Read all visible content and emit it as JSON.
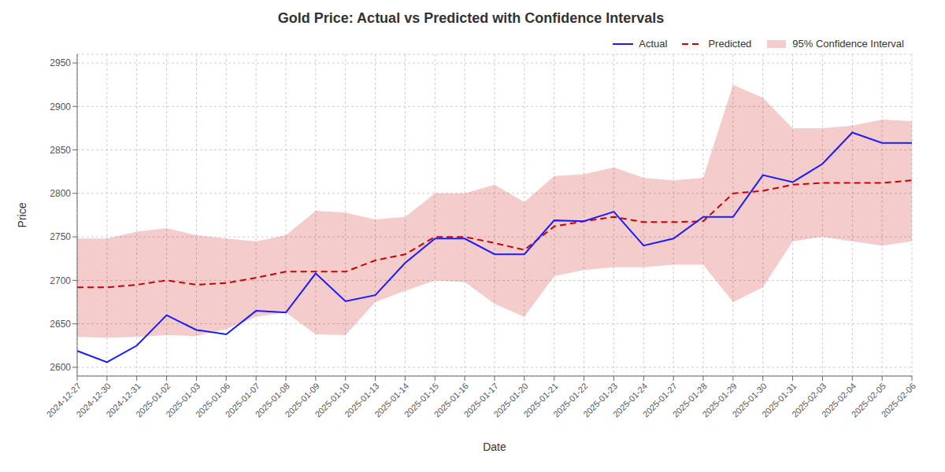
{
  "chart_data": {
    "type": "line",
    "title": "Gold Price: Actual vs Predicted with Confidence Intervals",
    "x_label": "Date",
    "y_label": "Price",
    "categories": [
      "2024-12-27",
      "2024-12-30",
      "2024-12-31",
      "2025-01-02",
      "2025-01-03",
      "2025-01-06",
      "2025-01-07",
      "2025-01-08",
      "2025-01-09",
      "2025-01-10",
      "2025-01-13",
      "2025-01-14",
      "2025-01-15",
      "2025-01-16",
      "2025-01-17",
      "2025-01-20",
      "2025-01-21",
      "2025-01-22",
      "2025-01-23",
      "2025-01-24",
      "2025-01-27",
      "2025-01-28",
      "2025-01-29",
      "2025-01-30",
      "2025-01-31",
      "2025-02-03",
      "2025-02-04",
      "2025-02-05",
      "2025-02-06"
    ],
    "series": [
      {
        "name": "Actual",
        "type": "line",
        "line_style": "solid",
        "color": "#1a1aff",
        "values": [
          2619,
          2606,
          2625,
          2660,
          2643,
          2638,
          2665,
          2663,
          2708,
          2676,
          2683,
          2720,
          2748,
          2748,
          2730,
          2730,
          2769,
          2768,
          2779,
          2740,
          2748,
          2773,
          2773,
          2821,
          2813,
          2834,
          2870,
          2858,
          2858
        ]
      },
      {
        "name": "Predicted",
        "type": "line",
        "line_style": "dashed",
        "color": "#cc0000",
        "values": [
          2692,
          2692,
          2695,
          2700,
          2695,
          2697,
          2703,
          2710,
          2710,
          2710,
          2723,
          2730,
          2750,
          2750,
          2743,
          2735,
          2762,
          2768,
          2773,
          2767,
          2767,
          2768,
          2800,
          2803,
          2810,
          2812,
          2812,
          2812,
          2815
        ]
      },
      {
        "name": "95% Confidence Interval",
        "type": "band",
        "color": "#cc0000",
        "lower": [
          2635,
          2634,
          2635,
          2637,
          2636,
          2644,
          2658,
          2663,
          2638,
          2637,
          2675,
          2688,
          2700,
          2698,
          2673,
          2658,
          2705,
          2712,
          2715,
          2715,
          2718,
          2718,
          2675,
          2692,
          2745,
          2750,
          2745,
          2740,
          2745
        ],
        "upper": [
          2748,
          2748,
          2756,
          2760,
          2752,
          2748,
          2745,
          2752,
          2780,
          2778,
          2770,
          2773,
          2800,
          2800,
          2810,
          2790,
          2820,
          2822,
          2830,
          2818,
          2815,
          2818,
          2925,
          2910,
          2875,
          2875,
          2878,
          2885,
          2883
        ]
      }
    ],
    "ylim": [
      2590,
      2960
    ],
    "yticks": [
      2600,
      2650,
      2700,
      2750,
      2800,
      2850,
      2900,
      2950
    ],
    "grid": true,
    "legend": "upper right"
  }
}
